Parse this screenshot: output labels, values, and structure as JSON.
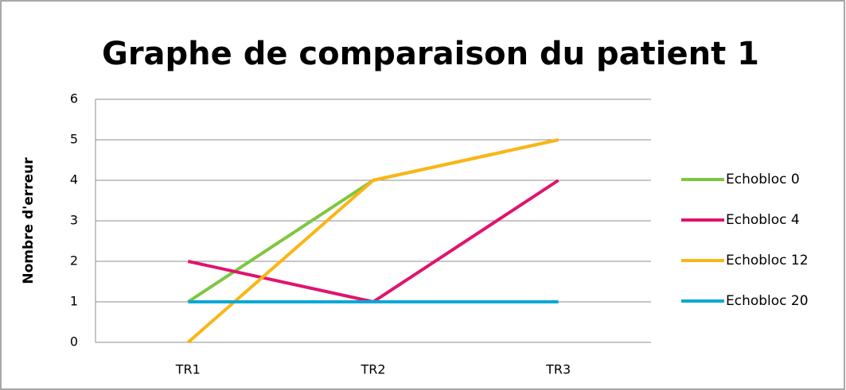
{
  "chart_data": {
    "type": "line",
    "title": "Graphe de comparaison du patient 1",
    "y_label": "Nombre d'erreur",
    "categories": [
      "TR1",
      "TR2",
      "TR3"
    ],
    "series": [
      {
        "name": "Echobloc 0",
        "color": "#7ec640",
        "values": [
          1,
          4,
          5
        ]
      },
      {
        "name": "Echobloc 4",
        "color": "#e0146e",
        "values": [
          2,
          1,
          4
        ]
      },
      {
        "name": "Echobloc 12",
        "color": "#fbb515",
        "values": [
          0,
          4,
          5
        ]
      },
      {
        "name": "Echobloc 20",
        "color": "#0aa9d6",
        "values": [
          1,
          1,
          1
        ]
      }
    ],
    "ylim": [
      0,
      6
    ],
    "yticks": [
      0,
      1,
      2,
      3,
      4,
      5,
      6
    ],
    "grid": true,
    "legend": "right"
  }
}
